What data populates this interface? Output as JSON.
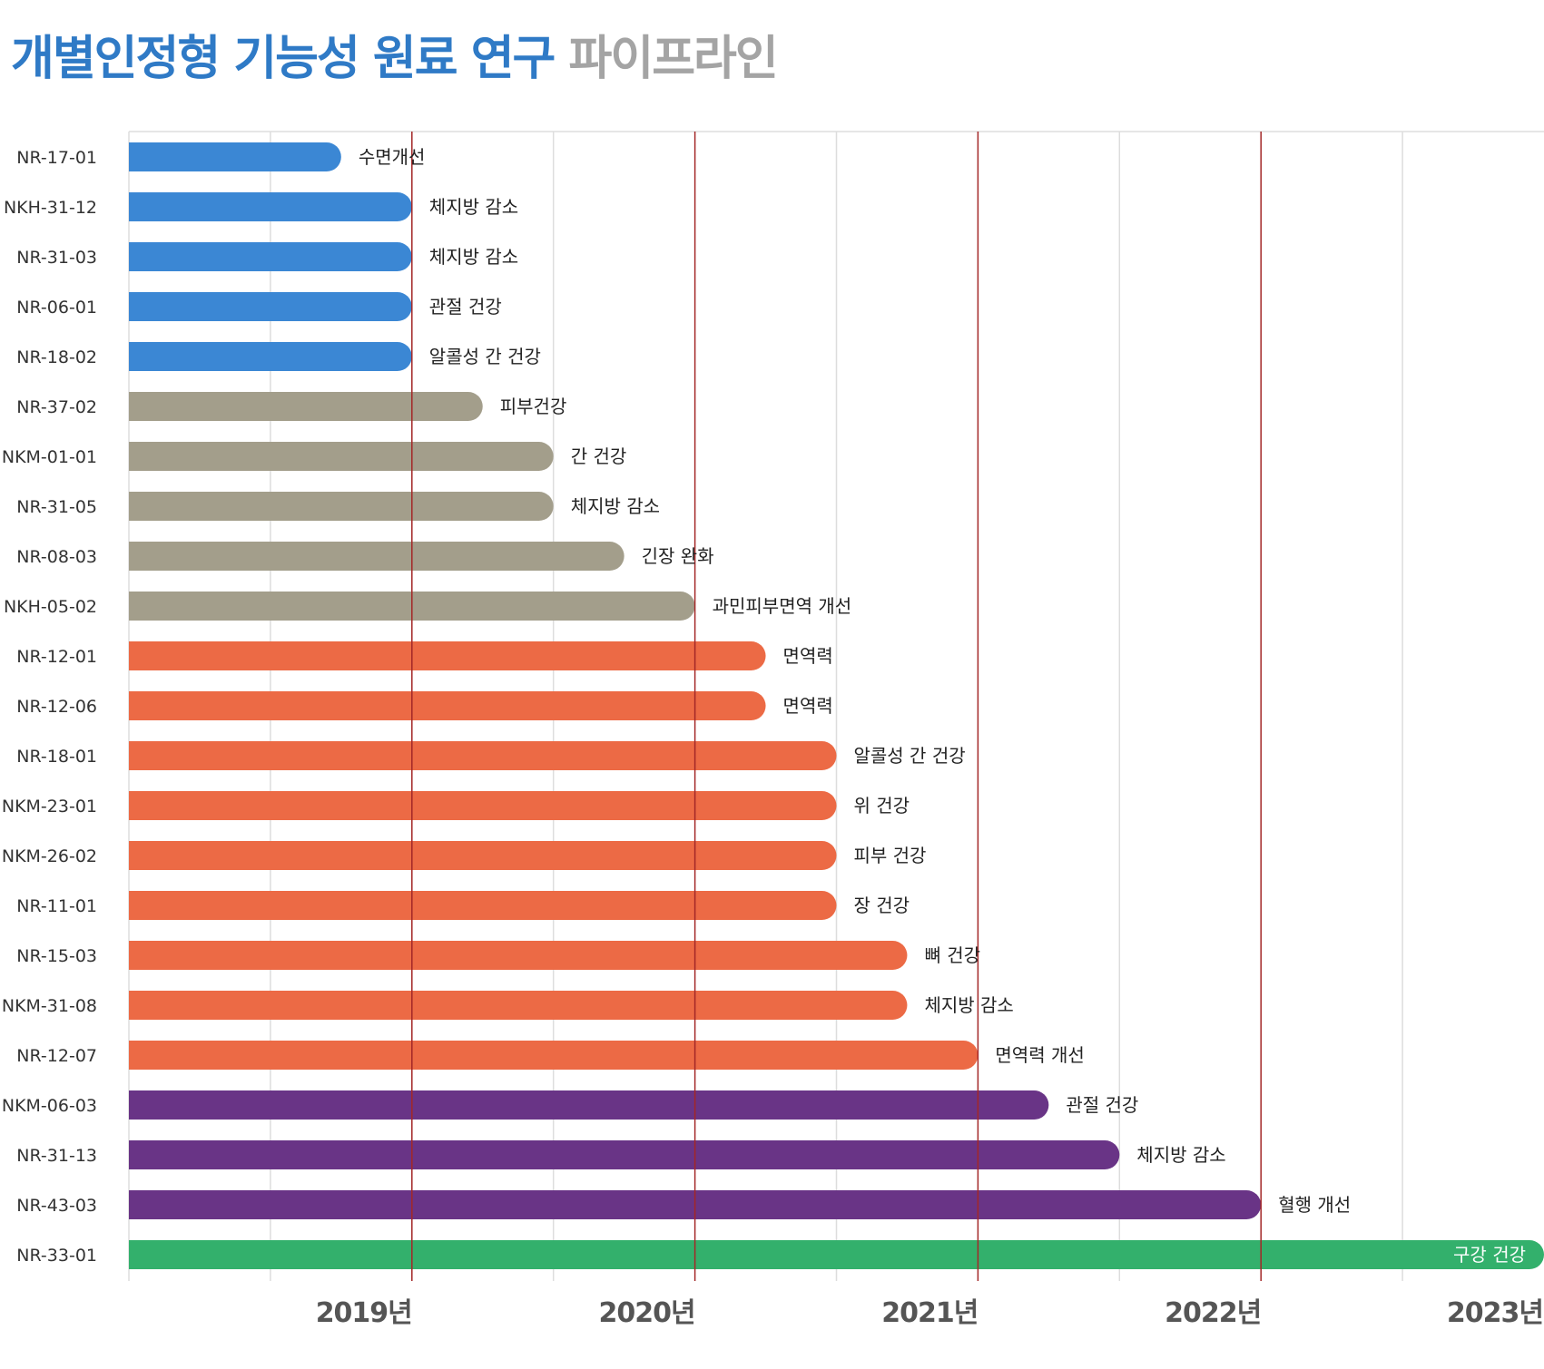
{
  "title": {
    "main": "개별인정형 기능성 원료 연구",
    "sub": "파이프라인"
  },
  "colors": {
    "blue": "#3b87d4",
    "gray": "#a39e8b",
    "orange": "#ec6a45",
    "purple": "#693486",
    "green": "#33b06c",
    "year_line": "#a32727",
    "grid": "#dddddd",
    "title_main": "#2f7ac6",
    "title_sub": "#a4a4a4"
  },
  "chart_data": {
    "type": "bar",
    "orientation": "horizontal",
    "x_unit": "year",
    "xlim": [
      2018.0,
      2023.0
    ],
    "x_ticks": [
      {
        "value": 2019,
        "label": "2019년"
      },
      {
        "value": 2020,
        "label": "2020년"
      },
      {
        "value": 2021,
        "label": "2021년"
      },
      {
        "value": 2022,
        "label": "2022년"
      },
      {
        "value": 2023,
        "label": "2023년"
      }
    ],
    "minor_gridlines": [
      2018.5,
      2019.5,
      2020.5,
      2021.5,
      2022.5
    ],
    "grid": true,
    "bars": [
      {
        "id": "NR-17-01",
        "label": "수면개선",
        "end": 2018.75,
        "color": "blue"
      },
      {
        "id": "NKH-31-12",
        "label": "체지방 감소",
        "end": 2019.0,
        "color": "blue"
      },
      {
        "id": "NR-31-03",
        "label": "체지방 감소",
        "end": 2019.0,
        "color": "blue"
      },
      {
        "id": "NR-06-01",
        "label": "관절 건강",
        "end": 2019.0,
        "color": "blue"
      },
      {
        "id": "NR-18-02",
        "label": "알콜성 간 건강",
        "end": 2019.0,
        "color": "blue"
      },
      {
        "id": "NR-37-02",
        "label": "피부건강",
        "end": 2019.25,
        "color": "gray"
      },
      {
        "id": "NKM-01-01",
        "label": "간 건강",
        "end": 2019.5,
        "color": "gray"
      },
      {
        "id": "NR-31-05",
        "label": "체지방 감소",
        "end": 2019.5,
        "color": "gray"
      },
      {
        "id": "NR-08-03",
        "label": "긴장 완화",
        "end": 2019.75,
        "color": "gray"
      },
      {
        "id": "NKH-05-02",
        "label": "과민피부면역 개선",
        "end": 2020.0,
        "color": "gray"
      },
      {
        "id": "NR-12-01",
        "label": "면역력",
        "end": 2020.25,
        "color": "orange"
      },
      {
        "id": "NR-12-06",
        "label": "면역력",
        "end": 2020.25,
        "color": "orange"
      },
      {
        "id": "NR-18-01",
        "label": "알콜성 간 건강",
        "end": 2020.5,
        "color": "orange"
      },
      {
        "id": "NKM-23-01",
        "label": "위 건강",
        "end": 2020.5,
        "color": "orange"
      },
      {
        "id": "NKM-26-02",
        "label": "피부 건강",
        "end": 2020.5,
        "color": "orange"
      },
      {
        "id": "NR-11-01",
        "label": "장 건강",
        "end": 2020.5,
        "color": "orange"
      },
      {
        "id": "NR-15-03",
        "label": "뼈 건강",
        "end": 2020.75,
        "color": "orange"
      },
      {
        "id": "NKM-31-08",
        "label": "체지방 감소",
        "end": 2020.75,
        "color": "orange"
      },
      {
        "id": "NR-12-07",
        "label": "면역력 개선",
        "end": 2021.0,
        "color": "orange"
      },
      {
        "id": "NKM-06-03",
        "label": "관절 건강",
        "end": 2021.25,
        "color": "purple"
      },
      {
        "id": "NR-31-13",
        "label": "체지방 감소",
        "end": 2021.5,
        "color": "purple"
      },
      {
        "id": "NR-43-03",
        "label": "혈행 개선",
        "end": 2022.0,
        "color": "purple"
      },
      {
        "id": "NR-33-01",
        "label": "구강 건강",
        "end": 2023.0,
        "color": "green",
        "label_inside": true
      }
    ]
  }
}
